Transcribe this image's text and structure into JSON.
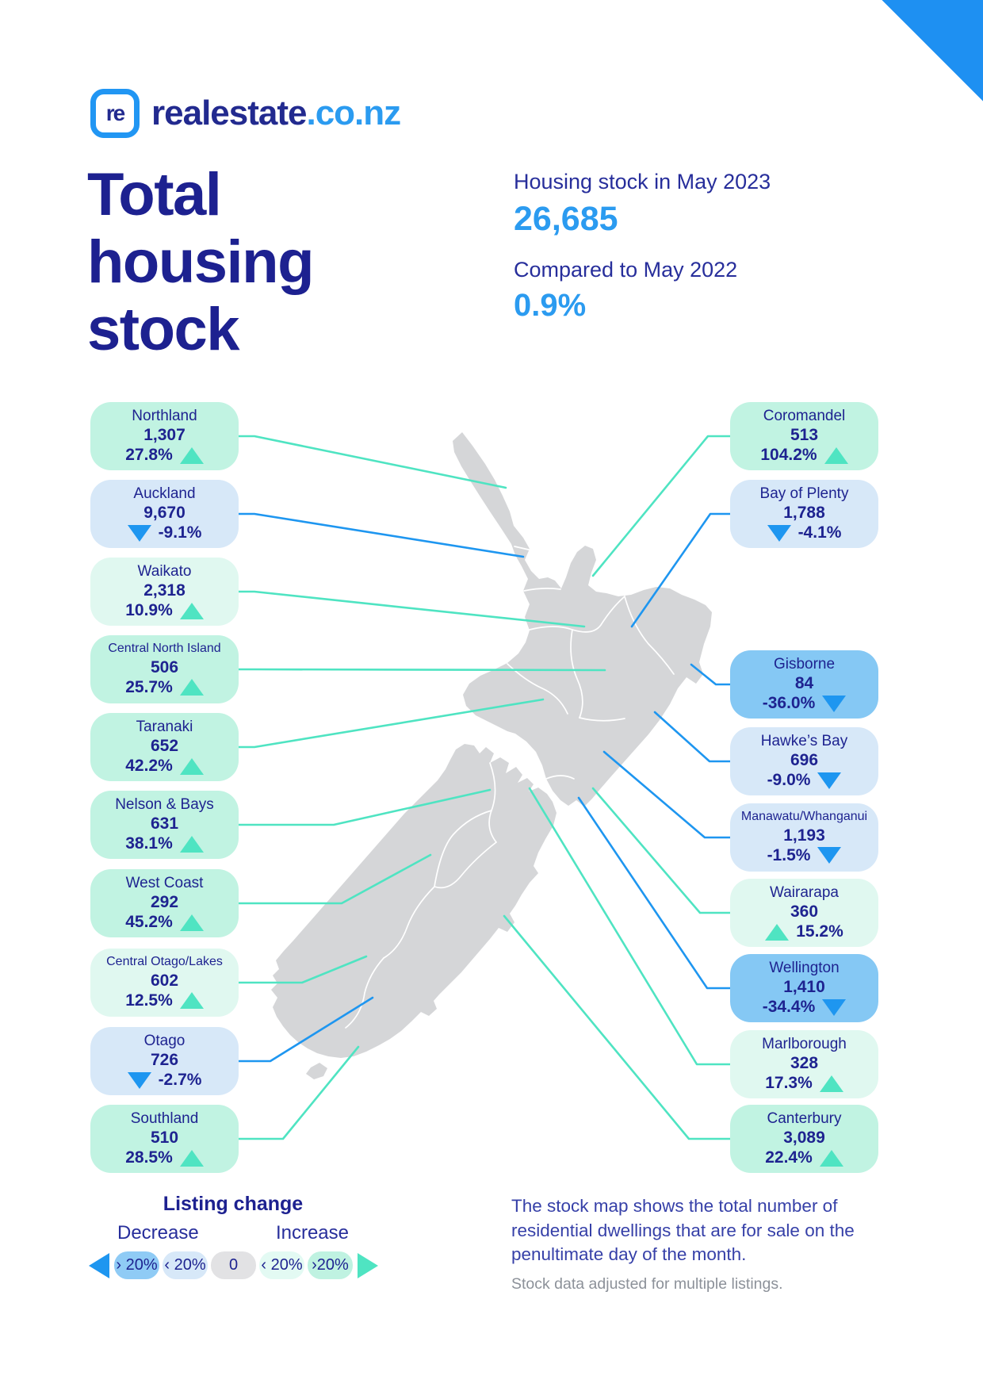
{
  "brand": {
    "name": "realestate",
    "tld": ".co.nz",
    "icon": "re"
  },
  "title_lines": [
    "Total",
    "housing",
    "stock"
  ],
  "stats": {
    "stock_label": "Housing stock in May 2023",
    "stock_value": "26,685",
    "compare_label": "Compared to May 2022",
    "compare_value": "0.9%"
  },
  "regions": {
    "left": [
      {
        "name": "Northland",
        "value": "1,307",
        "change": "27.8%",
        "direction": "up",
        "arrow_side": "right",
        "tone": "inc-strong"
      },
      {
        "name": "Auckland",
        "value": "9,670",
        "change": "-9.1%",
        "direction": "down",
        "arrow_side": "left",
        "tone": "dec-light"
      },
      {
        "name": "Waikato",
        "value": "2,318",
        "change": "10.9%",
        "direction": "up",
        "arrow_side": "right",
        "tone": "inc-light"
      },
      {
        "name": "Central North Island",
        "value": "506",
        "change": "25.7%",
        "direction": "up",
        "arrow_side": "right",
        "tone": "inc-strong"
      },
      {
        "name": "Taranaki",
        "value": "652",
        "change": "42.2%",
        "direction": "up",
        "arrow_side": "right",
        "tone": "inc-strong"
      },
      {
        "name": "Nelson & Bays",
        "value": "631",
        "change": "38.1%",
        "direction": "up",
        "arrow_side": "right",
        "tone": "inc-strong"
      },
      {
        "name": "West Coast",
        "value": "292",
        "change": "45.2%",
        "direction": "up",
        "arrow_side": "right",
        "tone": "inc-strong"
      },
      {
        "name": "Central Otago/Lakes",
        "value": "602",
        "change": "12.5%",
        "direction": "up",
        "arrow_side": "right",
        "tone": "inc-light"
      },
      {
        "name": "Otago",
        "value": "726",
        "change": "-2.7%",
        "direction": "down",
        "arrow_side": "left",
        "tone": "dec-light"
      },
      {
        "name": "Southland",
        "value": "510",
        "change": "28.5%",
        "direction": "up",
        "arrow_side": "right",
        "tone": "inc-strong"
      }
    ],
    "right": [
      {
        "name": "Coromandel",
        "value": "513",
        "change": "104.2%",
        "direction": "up",
        "arrow_side": "right",
        "tone": "inc-strong"
      },
      {
        "name": "Bay of Plenty",
        "value": "1,788",
        "change": "-4.1%",
        "direction": "down",
        "arrow_side": "left",
        "tone": "dec-light"
      },
      {
        "name": "Gisborne",
        "value": "84",
        "change": "-36.0%",
        "direction": "down",
        "arrow_side": "right",
        "tone": "dec-strong"
      },
      {
        "name": "Hawke’s Bay",
        "value": "696",
        "change": "-9.0%",
        "direction": "down",
        "arrow_side": "right",
        "tone": "dec-light"
      },
      {
        "name": "Manawatu/Whanganui",
        "value": "1,193",
        "change": "-1.5%",
        "direction": "down",
        "arrow_side": "right",
        "tone": "dec-light"
      },
      {
        "name": "Wairarapa",
        "value": "360",
        "change": "15.2%",
        "direction": "up",
        "arrow_side": "left",
        "tone": "inc-light"
      },
      {
        "name": "Wellington",
        "value": "1,410",
        "change": "-34.4%",
        "direction": "down",
        "arrow_side": "right",
        "tone": "dec-strong"
      },
      {
        "name": "Marlborough",
        "value": "328",
        "change": "17.3%",
        "direction": "up",
        "arrow_side": "right",
        "tone": "inc-light"
      },
      {
        "name": "Canterbury",
        "value": "3,089",
        "change": "22.4%",
        "direction": "up",
        "arrow_side": "right",
        "tone": "inc-strong"
      }
    ]
  },
  "legend": {
    "title": "Listing change",
    "decrease_label": "Decrease",
    "increase_label": "Increase",
    "pills": [
      {
        "label": "› 20%",
        "type": "dec-strong"
      },
      {
        "label": "‹ 20%",
        "type": "dec-light"
      },
      {
        "label": "0",
        "type": "zero"
      },
      {
        "label": "‹ 20%",
        "type": "inc-light"
      },
      {
        "label": "›20%",
        "type": "inc-strong"
      }
    ]
  },
  "note": {
    "main": "The stock map shows the total number of residential dwellings that are for sale on the penultimate day of the month.",
    "sub": "Stock data adjusted for multiple listings."
  },
  "colors": {
    "navy_text": "#1E2390",
    "title_navy": "#1D2190",
    "accent_blue": "#2B9BF0",
    "corner_blue": "#1E90F2",
    "map_grey": "#D5D6D8",
    "connector_up": "#4FE4C2",
    "connector_down": "#1E96F0",
    "arrow_up": "#4FE4C2",
    "arrow_down": "#1E96F0",
    "box_inc_strong": "#C1F3E2",
    "box_inc_light": "#E0F8F0",
    "box_dec_light": "#D7E8F8",
    "box_dec_strong": "#85C8F4"
  }
}
